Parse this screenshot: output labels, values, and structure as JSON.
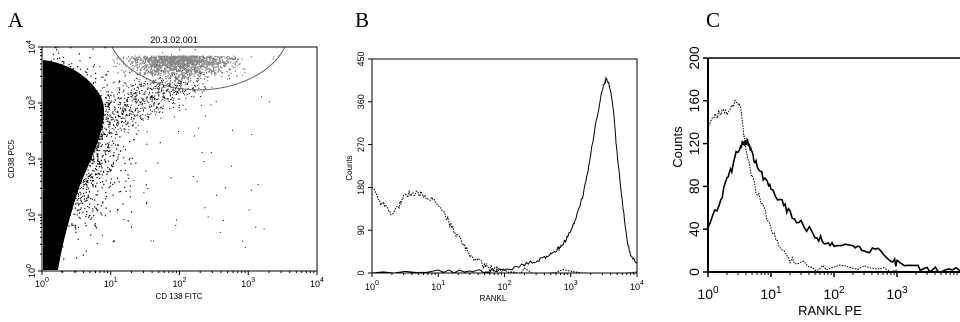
{
  "panels": {
    "a": {
      "label": "A"
    },
    "b": {
      "label": "B"
    },
    "c": {
      "label": "C"
    }
  },
  "chart_data": [
    {
      "type": "scatter",
      "panel": "A",
      "xlabel": "CD 138 FITC",
      "ylabel": "CD38 PC5",
      "x_scale": "log",
      "y_scale": "log",
      "xlim": [
        1,
        10000
      ],
      "ylim": [
        1,
        10000
      ],
      "x_ticks": [
        1,
        10,
        100,
        1000,
        10000
      ],
      "y_ticks": [
        1,
        10,
        100,
        1000,
        10000
      ],
      "gate_label": "20.3.02.001",
      "gate_color": "#888888",
      "point_color": "#000000",
      "grid": false
    },
    {
      "type": "line",
      "panel": "B",
      "xlabel": "RANKL",
      "ylabel": "Counts",
      "x_scale": "log",
      "xlim": [
        1,
        10000
      ],
      "ylim": [
        0,
        450
      ],
      "x_ticks": [
        1,
        10,
        100,
        1000,
        10000
      ],
      "y_ticks": [
        0,
        90,
        180,
        270,
        360,
        450
      ],
      "series": [
        {
          "style": "dotted",
          "x": [
            1,
            1.3,
            1.6,
            2,
            2.5,
            3,
            4,
            5,
            6,
            8,
            10,
            13,
            16,
            20,
            25,
            30,
            40,
            50,
            60,
            70,
            80,
            100,
            200,
            1000,
            10000
          ],
          "values": [
            180,
            150,
            140,
            125,
            140,
            160,
            170,
            168,
            165,
            155,
            140,
            120,
            95,
            75,
            55,
            40,
            25,
            15,
            10,
            8,
            6,
            5,
            4,
            3,
            2
          ]
        },
        {
          "style": "solid",
          "x": [
            1,
            10,
            30,
            60,
            100,
            150,
            200,
            300,
            400,
            500,
            600,
            700,
            800,
            900,
            1000,
            1200,
            1500,
            1800,
            2000,
            2500,
            3000,
            3200,
            3500,
            4000,
            4500,
            5000,
            6000,
            7000,
            8000,
            10000
          ],
          "values": [
            2,
            3,
            4,
            5,
            8,
            12,
            18,
            25,
            32,
            40,
            48,
            55,
            65,
            75,
            90,
            115,
            160,
            210,
            250,
            330,
            385,
            400,
            410,
            385,
            330,
            250,
            150,
            75,
            35,
            20
          ]
        }
      ],
      "grid": false
    },
    {
      "type": "line",
      "panel": "C",
      "xlabel": "RANKL PE",
      "ylabel": "Counts",
      "x_scale": "log",
      "xlim": [
        1,
        10000
      ],
      "ylim": [
        0,
        200
      ],
      "x_ticks": [
        1,
        10,
        100,
        1000
      ],
      "y_ticks": [
        0,
        40,
        80,
        120,
        160,
        200
      ],
      "series": [
        {
          "style": "dotted",
          "x": [
            1,
            1.3,
            1.6,
            2,
            2.5,
            3,
            3.3,
            3.8,
            4.5,
            5.5,
            7,
            9,
            12,
            16,
            20,
            30,
            50,
            100,
            300,
            1000
          ],
          "values": [
            135,
            145,
            150,
            148,
            155,
            160,
            150,
            125,
            100,
            80,
            65,
            48,
            30,
            18,
            12,
            8,
            5,
            4,
            3,
            2
          ]
        },
        {
          "style": "solid",
          "x": [
            1,
            1.5,
            2,
            2.5,
            3,
            3.5,
            4,
            4.5,
            5,
            6,
            8,
            10,
            15,
            20,
            30,
            50,
            70,
            100,
            200,
            300,
            500,
            800,
            1000,
            2000,
            3000,
            5000,
            10000
          ],
          "values": [
            40,
            65,
            85,
            100,
            115,
            120,
            122,
            118,
            110,
            100,
            85,
            78,
            65,
            55,
            45,
            35,
            28,
            27,
            24,
            22,
            20,
            12,
            8,
            4,
            2,
            1,
            1
          ]
        }
      ],
      "grid": false
    }
  ]
}
